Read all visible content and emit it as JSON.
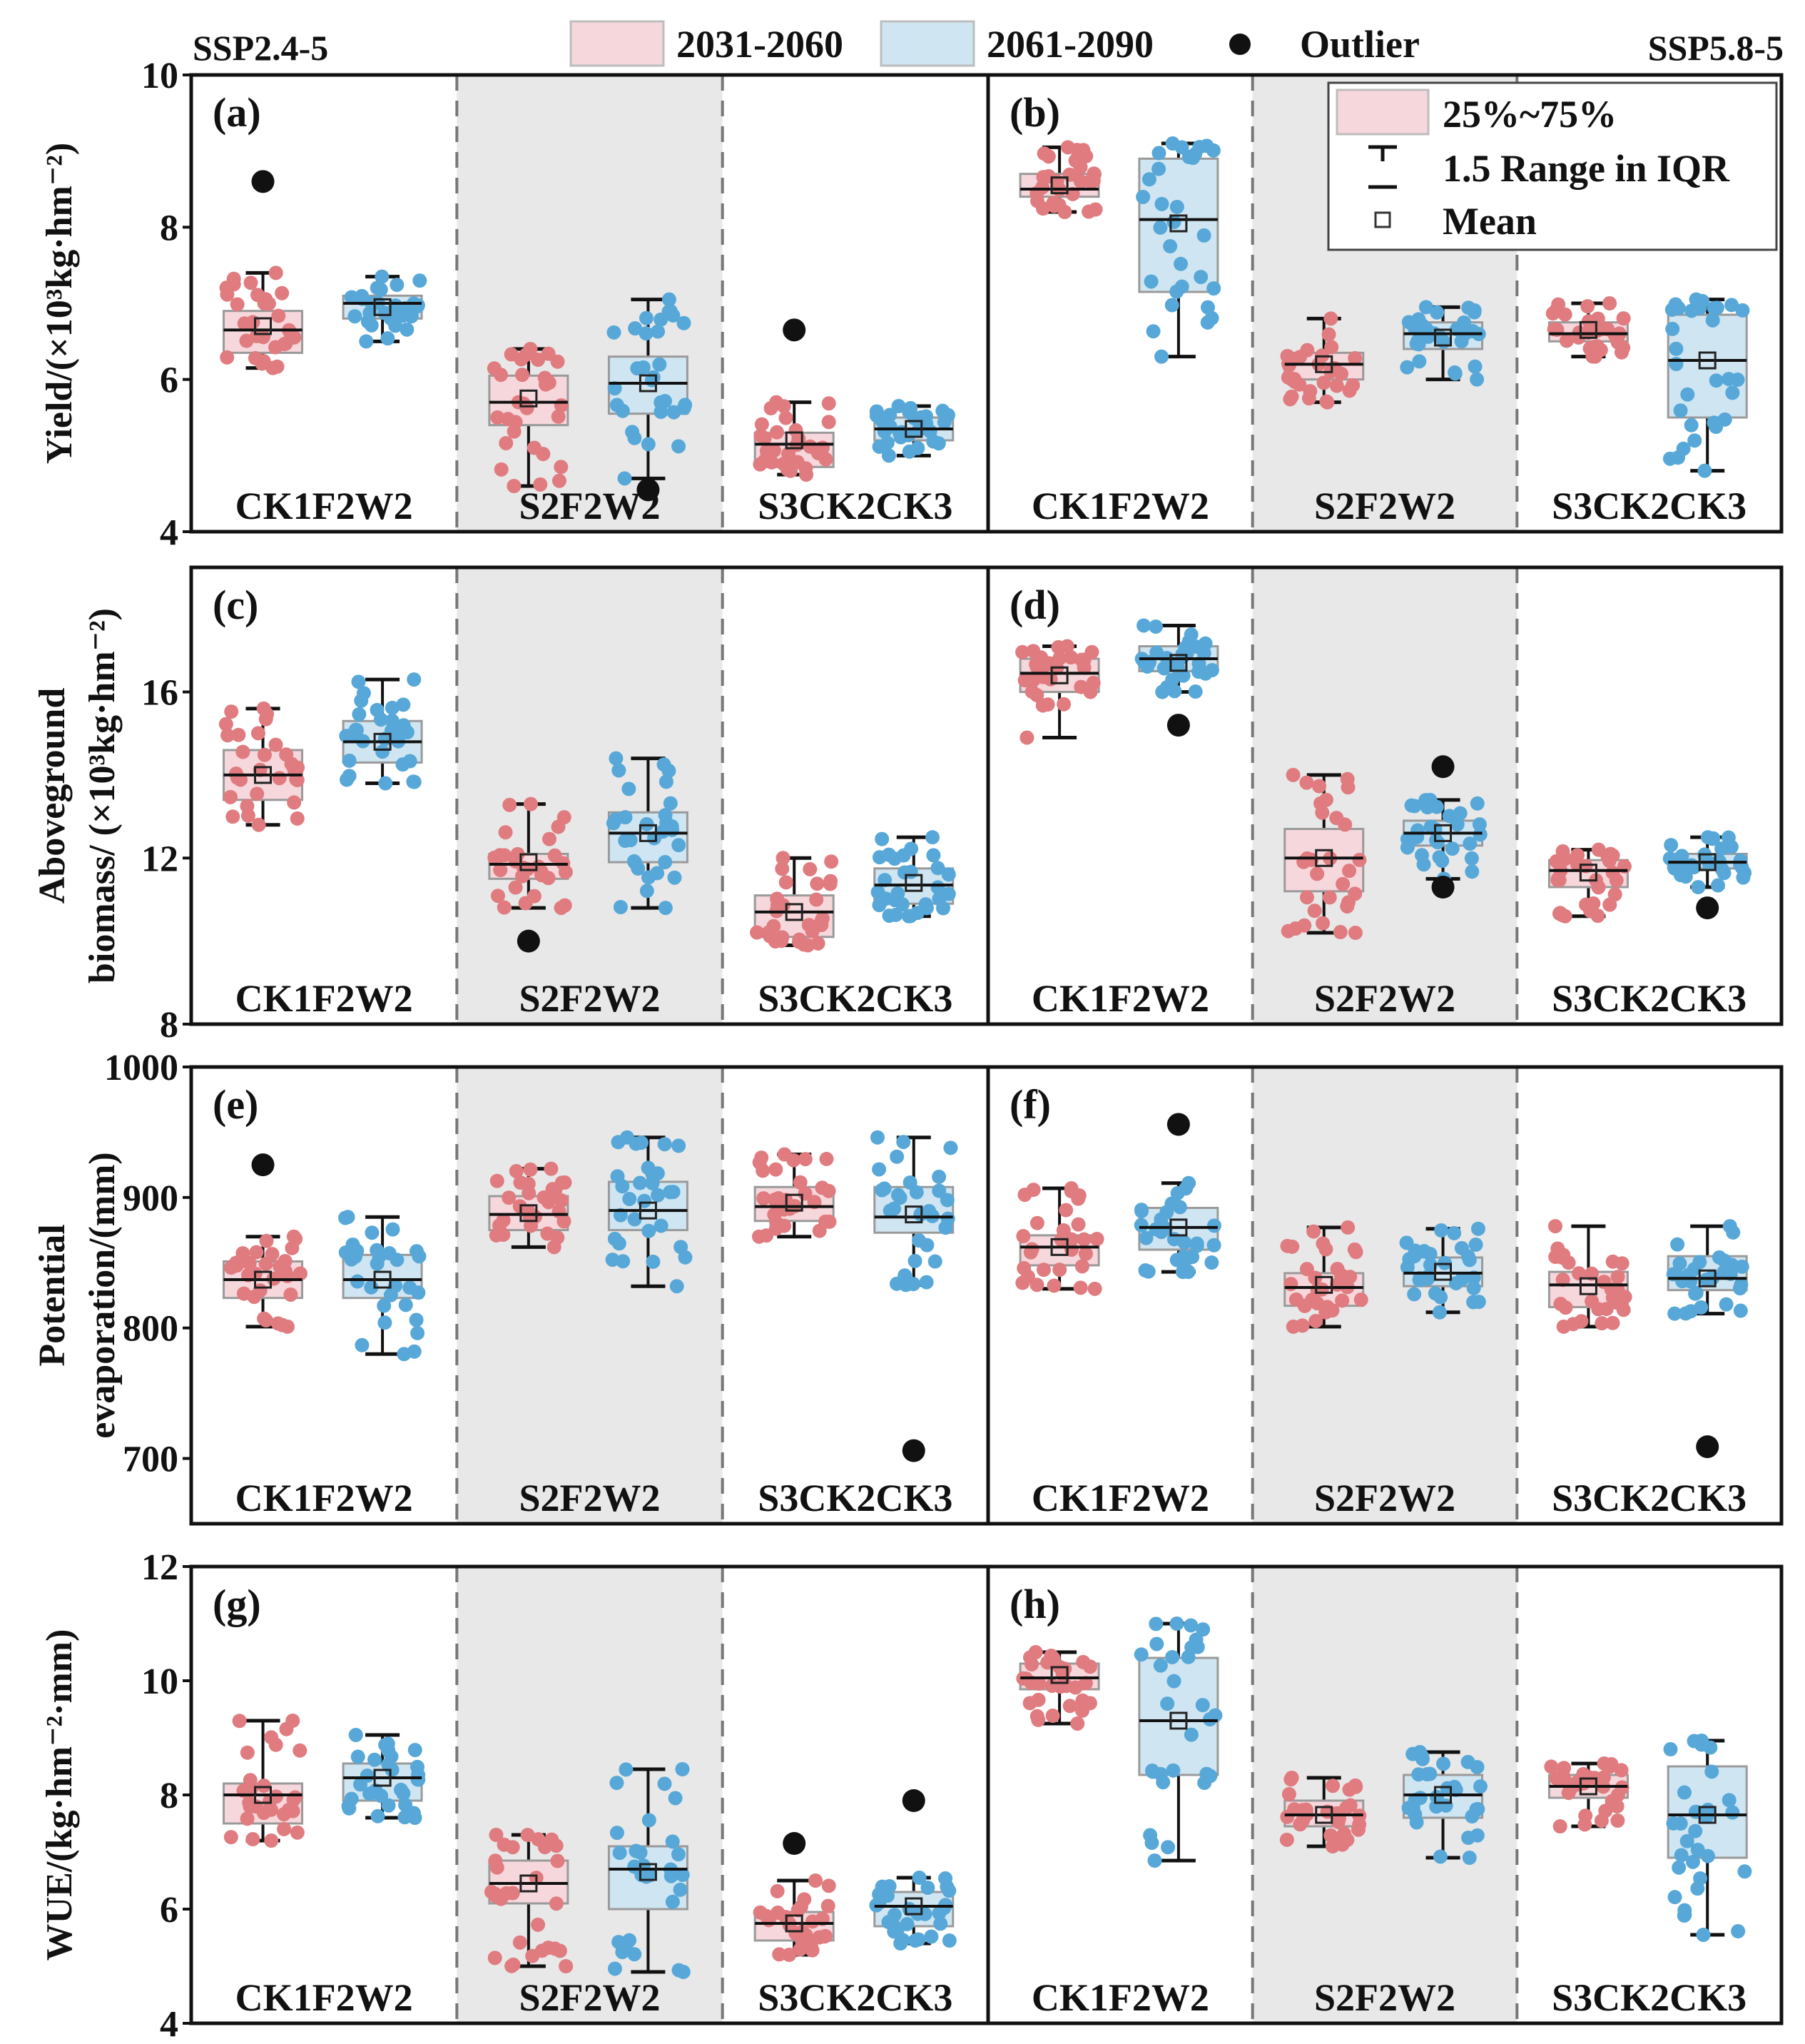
{
  "header": {
    "left_scenario": "SSP2.4-5",
    "right_scenario": "SSP5.8-5",
    "legend": {
      "period1": "2031-2060",
      "period2": "2061-2090",
      "outlier": "Outlier"
    }
  },
  "box_legend": {
    "iqr": "25%~75%",
    "range": "1.5 Range in IQR",
    "mean": "Mean"
  },
  "colors": {
    "period1_fill": "#f6d7dc",
    "period1_point": "#e07b7f",
    "period2_fill": "#cfe5f1",
    "period2_point": "#57a8d8",
    "shade": "#e8e8e8",
    "outlier": "#111111"
  },
  "chart_data": [
    {
      "type": "box",
      "ylabel": "Yield/(×10³kg·hm⁻²)",
      "ylim": [
        4,
        10
      ],
      "yticks": [
        4,
        6,
        8,
        10
      ],
      "panels": [
        {
          "label": "(a)",
          "scenario": "SSP2.4-5",
          "groups": [
            {
              "category": "CK1F2W2",
              "series": [
                {
                  "period": "2031-2060",
                  "min": 6.15,
                  "q1": 6.35,
                  "median": 6.65,
                  "q3": 6.9,
                  "max": 7.4,
                  "mean": 6.7,
                  "outliers": [
                    8.6
                  ]
                },
                {
                  "period": "2061-2090",
                  "min": 6.5,
                  "q1": 6.8,
                  "median": 7.0,
                  "q3": 7.1,
                  "max": 7.35,
                  "mean": 6.95,
                  "outliers": []
                }
              ]
            },
            {
              "category": "S2F2W2",
              "series": [
                {
                  "period": "2031-2060",
                  "min": 4.6,
                  "q1": 5.4,
                  "median": 5.7,
                  "q3": 6.05,
                  "max": 6.4,
                  "mean": 5.75,
                  "outliers": []
                },
                {
                  "period": "2061-2090",
                  "min": 4.7,
                  "q1": 5.55,
                  "median": 5.95,
                  "q3": 6.3,
                  "max": 7.05,
                  "mean": 5.95,
                  "outliers": [
                    4.55
                  ]
                }
              ]
            },
            {
              "category": "S3CK2CK3",
              "series": [
                {
                  "period": "2031-2060",
                  "min": 4.75,
                  "q1": 4.85,
                  "median": 5.15,
                  "q3": 5.3,
                  "max": 5.7,
                  "mean": 5.2,
                  "outliers": [
                    6.65
                  ]
                },
                {
                  "period": "2061-2090",
                  "min": 5.0,
                  "q1": 5.2,
                  "median": 5.35,
                  "q3": 5.5,
                  "max": 5.65,
                  "mean": 5.35,
                  "outliers": []
                }
              ]
            }
          ]
        },
        {
          "label": "(b)",
          "scenario": "SSP5.8-5",
          "groups": [
            {
              "category": "CK1F2W2",
              "series": [
                {
                  "period": "2031-2060",
                  "min": 8.2,
                  "q1": 8.4,
                  "median": 8.5,
                  "q3": 8.7,
                  "max": 9.05,
                  "mean": 8.55,
                  "outliers": []
                },
                {
                  "period": "2061-2090",
                  "min": 6.3,
                  "q1": 7.15,
                  "median": 8.1,
                  "q3": 8.9,
                  "max": 9.1,
                  "mean": 8.05,
                  "outliers": []
                }
              ]
            },
            {
              "category": "S2F2W2",
              "series": [
                {
                  "period": "2031-2060",
                  "min": 5.7,
                  "q1": 6.0,
                  "median": 6.2,
                  "q3": 6.35,
                  "max": 6.8,
                  "mean": 6.2,
                  "outliers": []
                },
                {
                  "period": "2061-2090",
                  "min": 6.0,
                  "q1": 6.4,
                  "median": 6.6,
                  "q3": 6.75,
                  "max": 6.95,
                  "mean": 6.55,
                  "outliers": []
                }
              ]
            },
            {
              "category": "S3CK2CK3",
              "series": [
                {
                  "period": "2031-2060",
                  "min": 6.3,
                  "q1": 6.5,
                  "median": 6.6,
                  "q3": 6.75,
                  "max": 7.0,
                  "mean": 6.65,
                  "outliers": []
                },
                {
                  "period": "2061-2090",
                  "min": 4.8,
                  "q1": 5.5,
                  "median": 6.25,
                  "q3": 6.85,
                  "max": 7.05,
                  "mean": 6.25,
                  "outliers": []
                }
              ]
            }
          ]
        }
      ]
    },
    {
      "type": "box",
      "ylabel": "Aboveground biomass/ (×10³kg·hm⁻²)",
      "ylim": [
        8,
        19
      ],
      "yticks": [
        8,
        12,
        16
      ],
      "panels": [
        {
          "label": "(c)",
          "scenario": "SSP2.4-5",
          "groups": [
            {
              "category": "CK1F2W2",
              "series": [
                {
                  "period": "2031-2060",
                  "min": 12.8,
                  "q1": 13.4,
                  "median": 14.0,
                  "q3": 14.6,
                  "max": 15.6,
                  "mean": 14.0,
                  "outliers": []
                },
                {
                  "period": "2061-2090",
                  "min": 13.8,
                  "q1": 14.3,
                  "median": 14.8,
                  "q3": 15.3,
                  "max": 16.3,
                  "mean": 14.8,
                  "outliers": []
                }
              ]
            },
            {
              "category": "S2F2W2",
              "series": [
                {
                  "period": "2031-2060",
                  "min": 10.8,
                  "q1": 11.5,
                  "median": 11.85,
                  "q3": 12.1,
                  "max": 13.3,
                  "mean": 11.9,
                  "outliers": [
                    10.0
                  ]
                },
                {
                  "period": "2061-2090",
                  "min": 10.8,
                  "q1": 11.9,
                  "median": 12.6,
                  "q3": 13.1,
                  "max": 14.4,
                  "mean": 12.6,
                  "outliers": []
                }
              ]
            },
            {
              "category": "S3CK2CK3",
              "series": [
                {
                  "period": "2031-2060",
                  "min": 9.9,
                  "q1": 10.1,
                  "median": 10.7,
                  "q3": 11.1,
                  "max": 12.0,
                  "mean": 10.7,
                  "outliers": []
                },
                {
                  "period": "2061-2090",
                  "min": 10.6,
                  "q1": 10.9,
                  "median": 11.35,
                  "q3": 11.75,
                  "max": 12.5,
                  "mean": 11.4,
                  "outliers": []
                }
              ]
            }
          ]
        },
        {
          "label": "(d)",
          "scenario": "SSP5.8-5",
          "groups": [
            {
              "category": "CK1F2W2",
              "series": [
                {
                  "period": "2031-2060",
                  "min": 14.9,
                  "q1": 16.0,
                  "median": 16.45,
                  "q3": 16.8,
                  "max": 17.1,
                  "mean": 16.4,
                  "outliers": []
                },
                {
                  "period": "2061-2090",
                  "min": 16.0,
                  "q1": 16.5,
                  "median": 16.8,
                  "q3": 17.1,
                  "max": 17.6,
                  "mean": 16.7,
                  "outliers": [
                    15.2
                  ]
                }
              ]
            },
            {
              "category": "S2F2W2",
              "series": [
                {
                  "period": "2031-2060",
                  "min": 10.2,
                  "q1": 11.2,
                  "median": 12.0,
                  "q3": 12.7,
                  "max": 14.0,
                  "mean": 12.0,
                  "outliers": []
                },
                {
                  "period": "2061-2090",
                  "min": 11.5,
                  "q1": 12.3,
                  "median": 12.6,
                  "q3": 12.9,
                  "max": 13.4,
                  "mean": 12.6,
                  "outliers": [
                    11.3,
                    14.2
                  ]
                }
              ]
            },
            {
              "category": "S3CK2CK3",
              "series": [
                {
                  "period": "2031-2060",
                  "min": 10.6,
                  "q1": 11.3,
                  "median": 11.7,
                  "q3": 11.95,
                  "max": 12.2,
                  "mean": 11.65,
                  "outliers": []
                },
                {
                  "period": "2061-2090",
                  "min": 11.3,
                  "q1": 11.75,
                  "median": 11.9,
                  "q3": 12.1,
                  "max": 12.5,
                  "mean": 11.9,
                  "outliers": [
                    10.8
                  ]
                }
              ]
            }
          ]
        }
      ]
    },
    {
      "type": "box",
      "ylabel": "Potential evaporation/(mm)",
      "ylim": [
        650,
        1000
      ],
      "yticks": [
        700,
        800,
        900,
        1000
      ],
      "panels": [
        {
          "label": "(e)",
          "scenario": "SSP2.4-5",
          "groups": [
            {
              "category": "CK1F2W2",
              "series": [
                {
                  "period": "2031-2060",
                  "min": 801,
                  "q1": 823,
                  "median": 837,
                  "q3": 851,
                  "max": 870,
                  "mean": 837,
                  "outliers": [
                    925
                  ]
                },
                {
                  "period": "2061-2090",
                  "min": 780,
                  "q1": 823,
                  "median": 837,
                  "q3": 856,
                  "max": 885,
                  "mean": 837,
                  "outliers": []
                }
              ]
            },
            {
              "category": "S2F2W2",
              "series": [
                {
                  "period": "2031-2060",
                  "min": 862,
                  "q1": 875,
                  "median": 887,
                  "q3": 901,
                  "max": 922,
                  "mean": 888,
                  "outliers": []
                },
                {
                  "period": "2061-2090",
                  "min": 832,
                  "q1": 875,
                  "median": 890,
                  "q3": 912,
                  "max": 946,
                  "mean": 890,
                  "outliers": []
                }
              ]
            },
            {
              "category": "S3CK2CK3",
              "series": [
                {
                  "period": "2031-2060",
                  "min": 870,
                  "q1": 882,
                  "median": 893,
                  "q3": 908,
                  "max": 933,
                  "mean": 896,
                  "outliers": []
                },
                {
                  "period": "2061-2090",
                  "min": 833,
                  "q1": 873,
                  "median": 885,
                  "q3": 908,
                  "max": 946,
                  "mean": 887,
                  "outliers": [
                    706
                  ]
                }
              ]
            }
          ]
        },
        {
          "label": "(f)",
          "scenario": "SSP5.8-5",
          "groups": [
            {
              "category": "CK1F2W2",
              "series": [
                {
                  "period": "2031-2060",
                  "min": 830,
                  "q1": 848,
                  "median": 862,
                  "q3": 871,
                  "max": 907,
                  "mean": 862,
                  "outliers": []
                },
                {
                  "period": "2061-2090",
                  "min": 843,
                  "q1": 860,
                  "median": 877,
                  "q3": 892,
                  "max": 911,
                  "mean": 877,
                  "outliers": [
                    956
                  ]
                }
              ]
            },
            {
              "category": "S2F2W2",
              "series": [
                {
                  "period": "2031-2060",
                  "min": 801,
                  "q1": 817,
                  "median": 831,
                  "q3": 842,
                  "max": 877,
                  "mean": 833,
                  "outliers": []
                },
                {
                  "period": "2061-2090",
                  "min": 812,
                  "q1": 832,
                  "median": 842,
                  "q3": 854,
                  "max": 876,
                  "mean": 843,
                  "outliers": []
                }
              ]
            },
            {
              "category": "S3CK2CK3",
              "series": [
                {
                  "period": "2031-2060",
                  "min": 801,
                  "q1": 816,
                  "median": 833,
                  "q3": 843,
                  "max": 878,
                  "mean": 832,
                  "outliers": []
                },
                {
                  "period": "2061-2090",
                  "min": 811,
                  "q1": 829,
                  "median": 838,
                  "q3": 855,
                  "max": 878,
                  "mean": 838,
                  "outliers": [
                    709
                  ]
                }
              ]
            }
          ]
        }
      ]
    },
    {
      "type": "box",
      "ylabel": "WUE/(kg·hm⁻²·mm)",
      "ylim": [
        4,
        12
      ],
      "yticks": [
        4,
        6,
        8,
        10,
        12
      ],
      "panels": [
        {
          "label": "(g)",
          "scenario": "SSP2.4-5",
          "groups": [
            {
              "category": "CK1F2W2",
              "series": [
                {
                  "period": "2031-2060",
                  "min": 7.2,
                  "q1": 7.5,
                  "median": 8.0,
                  "q3": 8.2,
                  "max": 9.3,
                  "mean": 8.0,
                  "outliers": []
                },
                {
                  "period": "2061-2090",
                  "min": 7.6,
                  "q1": 7.9,
                  "median": 8.3,
                  "q3": 8.55,
                  "max": 9.05,
                  "mean": 8.3,
                  "outliers": []
                }
              ]
            },
            {
              "category": "S2F2W2",
              "series": [
                {
                  "period": "2031-2060",
                  "min": 5.0,
                  "q1": 6.1,
                  "median": 6.45,
                  "q3": 6.85,
                  "max": 7.3,
                  "mean": 6.45,
                  "outliers": []
                },
                {
                  "period": "2061-2090",
                  "min": 4.9,
                  "q1": 6.0,
                  "median": 6.7,
                  "q3": 7.1,
                  "max": 8.45,
                  "mean": 6.65,
                  "outliers": []
                }
              ]
            },
            {
              "category": "S3CK2CK3",
              "series": [
                {
                  "period": "2031-2060",
                  "min": 5.2,
                  "q1": 5.45,
                  "median": 5.75,
                  "q3": 5.95,
                  "max": 6.5,
                  "mean": 5.75,
                  "outliers": [
                    7.15
                  ]
                },
                {
                  "period": "2061-2090",
                  "min": 5.4,
                  "q1": 5.7,
                  "median": 6.05,
                  "q3": 6.3,
                  "max": 6.55,
                  "mean": 6.05,
                  "outliers": [
                    7.9
                  ]
                }
              ]
            }
          ]
        },
        {
          "label": "(h)",
          "scenario": "SSP5.8-5",
          "groups": [
            {
              "category": "CK1F2W2",
              "series": [
                {
                  "period": "2031-2060",
                  "min": 9.25,
                  "q1": 9.85,
                  "median": 10.05,
                  "q3": 10.3,
                  "max": 10.5,
                  "mean": 10.1,
                  "outliers": []
                },
                {
                  "period": "2061-2090",
                  "min": 6.85,
                  "q1": 8.35,
                  "median": 9.3,
                  "q3": 10.4,
                  "max": 11.0,
                  "mean": 9.3,
                  "outliers": []
                }
              ]
            },
            {
              "category": "S2F2W2",
              "series": [
                {
                  "period": "2031-2060",
                  "min": 7.1,
                  "q1": 7.45,
                  "median": 7.65,
                  "q3": 7.9,
                  "max": 8.3,
                  "mean": 7.65,
                  "outliers": []
                },
                {
                  "period": "2061-2090",
                  "min": 6.9,
                  "q1": 7.6,
                  "median": 8.0,
                  "q3": 8.35,
                  "max": 8.75,
                  "mean": 8.0,
                  "outliers": []
                }
              ]
            },
            {
              "category": "S3CK2CK3",
              "series": [
                {
                  "period": "2031-2060",
                  "min": 7.45,
                  "q1": 7.95,
                  "median": 8.15,
                  "q3": 8.35,
                  "max": 8.55,
                  "mean": 8.15,
                  "outliers": []
                },
                {
                  "period": "2061-2090",
                  "min": 5.55,
                  "q1": 6.9,
                  "median": 7.65,
                  "q3": 8.5,
                  "max": 8.95,
                  "mean": 7.65,
                  "outliers": []
                }
              ]
            }
          ]
        }
      ]
    }
  ]
}
